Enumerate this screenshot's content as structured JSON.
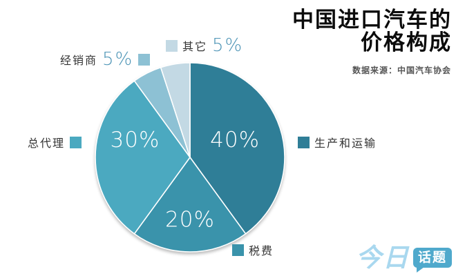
{
  "title": {
    "line1": "中国进口汽车的",
    "line2": "价格构成"
  },
  "source": "数据来源：中国汽车协会",
  "logo": {
    "brand_light": "今日",
    "brand_bubble": "话题"
  },
  "colors": {
    "pct_text": "#4b93b5",
    "label_text": "#333333",
    "inside_label_text": "#ffffff",
    "logo_light_blue": "#a9d8ef",
    "logo_bubble_blue": "#4fa9cc"
  },
  "chart_data": {
    "type": "pie",
    "title": "中国进口汽车的价格构成",
    "source": "数据来源：中国汽车协会",
    "start_angle": "12-o-clock",
    "direction": "clockwise",
    "legend_position": "around",
    "slices": [
      {
        "label": "生产和运输",
        "value": 40,
        "pct_label": "40%",
        "color": "#2f7e97",
        "pct_inside": true
      },
      {
        "label": "税费",
        "value": 20,
        "pct_label": "20%",
        "color": "#3a93ab",
        "pct_inside": true
      },
      {
        "label": "总代理",
        "value": 30,
        "pct_label": "30%",
        "color": "#4ba9c0",
        "pct_inside": true
      },
      {
        "label": "经销商",
        "value": 5,
        "pct_label": "5%",
        "color": "#8dc1d4",
        "pct_inside": false
      },
      {
        "label": "其它",
        "value": 5,
        "pct_label": "5%",
        "color": "#c3d9e4",
        "pct_inside": false
      }
    ]
  }
}
